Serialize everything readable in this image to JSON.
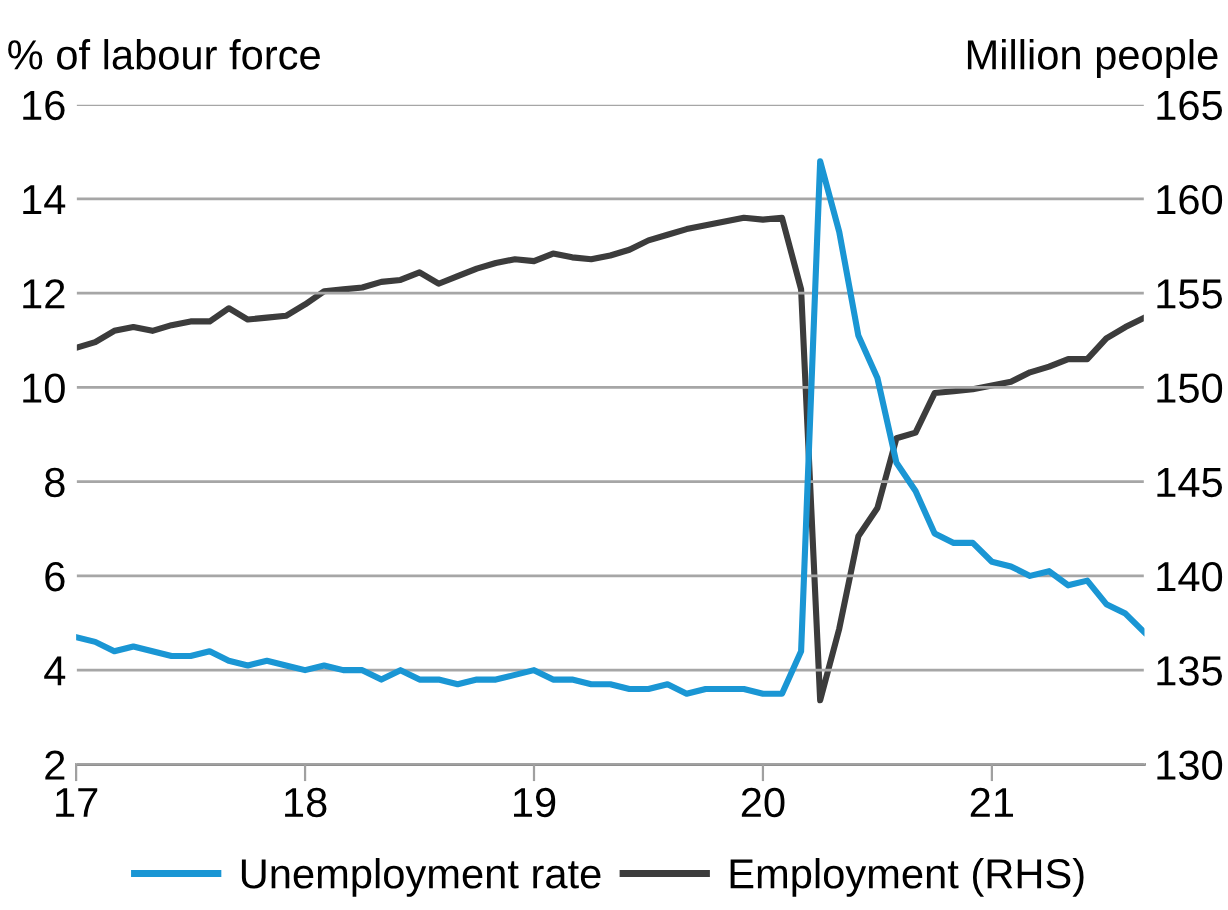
{
  "chart_data": {
    "type": "line",
    "ylabel": "% of labour force",
    "y2label": "Million people",
    "x": [
      17.0,
      17.0833,
      17.1667,
      17.25,
      17.3333,
      17.4167,
      17.5,
      17.5833,
      17.6667,
      17.75,
      17.8333,
      17.9167,
      18.0,
      18.0833,
      18.1667,
      18.25,
      18.3333,
      18.4167,
      18.5,
      18.5833,
      18.6667,
      18.75,
      18.8333,
      18.9167,
      19.0,
      19.0833,
      19.1667,
      19.25,
      19.3333,
      19.4167,
      19.5,
      19.5833,
      19.6667,
      19.75,
      19.8333,
      19.9167,
      20.0,
      20.0833,
      20.1667,
      20.25,
      20.3333,
      20.4167,
      20.5,
      20.5833,
      20.6667,
      20.75,
      20.8333,
      20.9167,
      21.0,
      21.0833,
      21.1667,
      21.25,
      21.3333,
      21.4167,
      21.5,
      21.5833,
      21.6667
    ],
    "series": [
      {
        "name": "Unemployment rate",
        "color": "#1a96d4",
        "values": [
          4.7,
          4.6,
          4.4,
          4.5,
          4.4,
          4.3,
          4.3,
          4.4,
          4.2,
          4.1,
          4.2,
          4.1,
          4.0,
          4.1,
          4.0,
          4.0,
          3.8,
          4.0,
          3.8,
          3.8,
          3.7,
          3.8,
          3.8,
          3.9,
          4.0,
          3.8,
          3.8,
          3.7,
          3.7,
          3.6,
          3.6,
          3.7,
          3.5,
          3.6,
          3.6,
          3.6,
          3.5,
          3.5,
          4.4,
          14.8,
          13.3,
          11.1,
          10.2,
          8.4,
          7.8,
          6.9,
          6.7,
          6.7,
          6.3,
          6.2,
          6.0,
          6.1,
          5.8,
          5.9,
          5.4,
          5.2,
          4.8
        ]
      },
      {
        "name": "Employment (RHS)",
        "color": "#3c3c3c",
        "axis": "y2",
        "values": [
          152.1,
          152.4,
          153.0,
          153.2,
          153.0,
          153.3,
          153.5,
          153.5,
          154.2,
          153.6,
          153.7,
          153.8,
          154.4,
          155.1,
          155.2,
          155.3,
          155.6,
          155.7,
          156.1,
          155.5,
          155.9,
          156.3,
          156.6,
          156.8,
          156.7,
          157.1,
          156.9,
          156.8,
          157.0,
          157.3,
          157.8,
          158.1,
          158.4,
          158.6,
          158.8,
          159.0,
          158.9,
          159.0,
          155.2,
          133.4,
          137.2,
          142.1,
          143.6,
          147.3,
          147.6,
          149.7,
          149.8,
          149.9,
          150.1,
          150.3,
          150.8,
          151.1,
          151.5,
          151.5,
          152.6,
          153.2,
          153.7
        ]
      }
    ],
    "xlim": [
      17,
      21.6667
    ],
    "xticks": [
      17,
      18,
      19,
      20,
      21
    ],
    "ylim": [
      2,
      16
    ],
    "yticks": [
      2,
      4,
      6,
      8,
      10,
      12,
      14,
      16
    ],
    "y2lim": [
      130,
      165
    ],
    "y2ticks": [
      130,
      135,
      140,
      145,
      150,
      155,
      160,
      165
    ],
    "grid": "y",
    "legend": "bottom",
    "line_style": "solid",
    "marker": "none"
  }
}
